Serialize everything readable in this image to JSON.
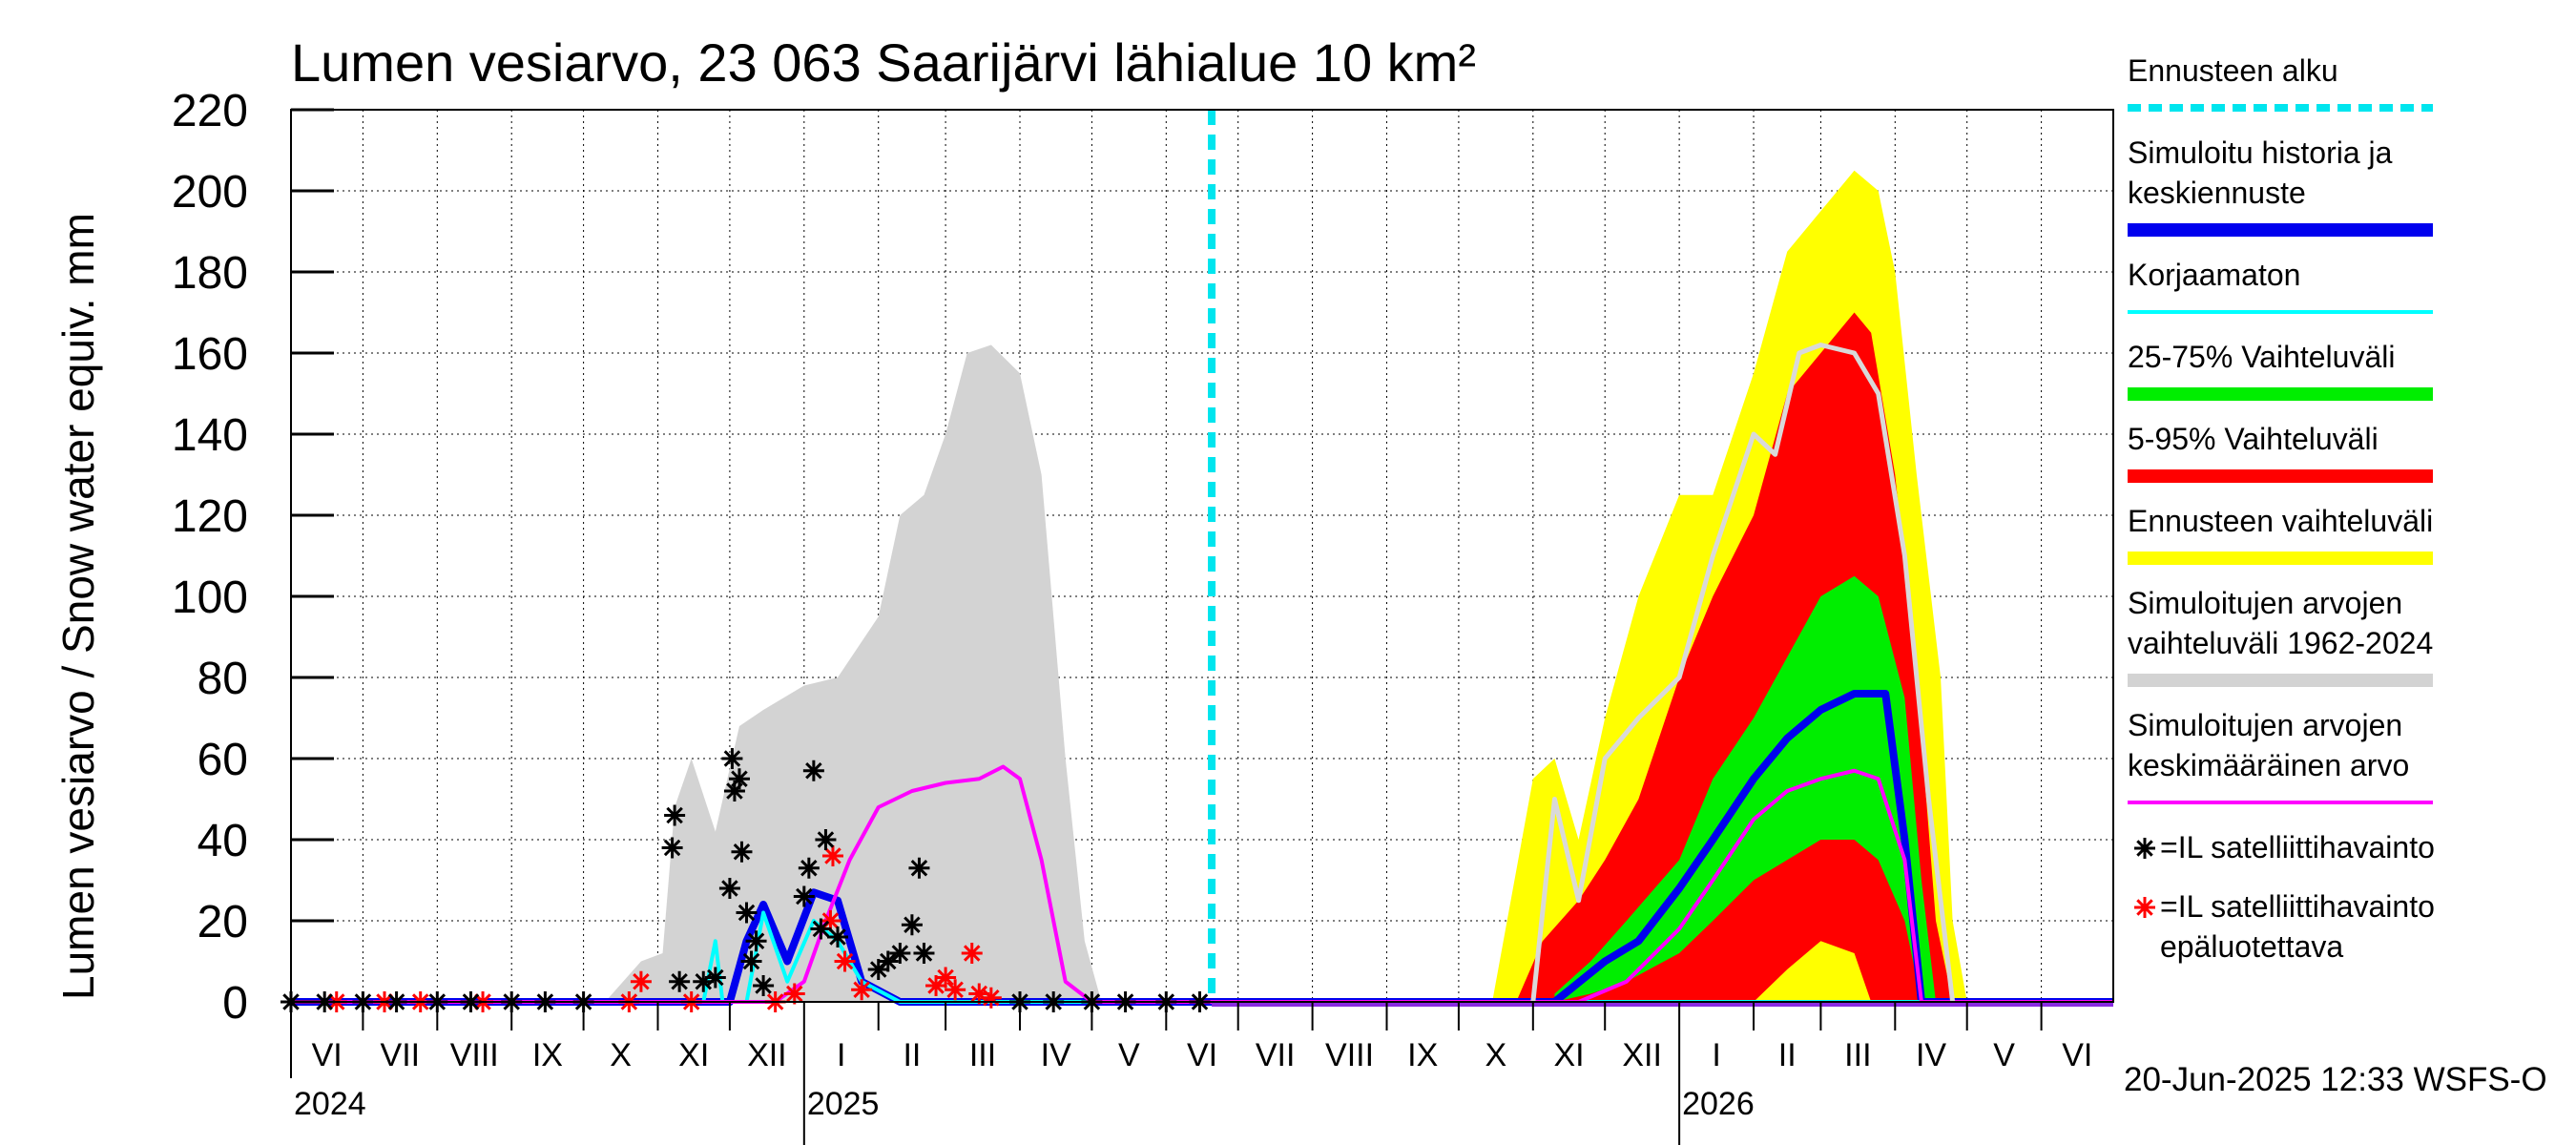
{
  "chart_data": {
    "type": "area",
    "title": "Lumen vesiarvo, 23 063 Saarijärvi lähialue 10 km²",
    "ylabel": "Lumen vesiarvo / Snow water equiv.    mm",
    "ylim": [
      0,
      220
    ],
    "yticks": [
      0,
      20,
      40,
      60,
      80,
      100,
      120,
      140,
      160,
      180,
      200,
      220
    ],
    "xlim": [
      "2024-06-01",
      "2026-07-01"
    ],
    "month_labels": [
      "VI",
      "VII",
      "VIII",
      "IX",
      "X",
      "XI",
      "XII",
      "I",
      "II",
      "III",
      "IV",
      "V",
      "VI",
      "VII",
      "VIII",
      "IX",
      "X",
      "XI",
      "XII",
      "I",
      "II",
      "III",
      "IV",
      "V",
      "VI"
    ],
    "year_labels": [
      {
        "label": "2024",
        "date": "2024-06-01"
      },
      {
        "label": "2025",
        "date": "2025-01-01"
      },
      {
        "label": "2026",
        "date": "2026-01-01"
      }
    ],
    "grid": true,
    "forecast_start": "2025-06-20",
    "footer": "20-Jun-2025 12:33 WSFS-O",
    "legend_position": "right",
    "legend": [
      {
        "label": "Ennusteen alku",
        "color": "#00e5ee",
        "style": "dashed"
      },
      {
        "label": "Simuloitu historia ja keskiennuste",
        "color": "#0000ee",
        "style": "thick"
      },
      {
        "label": "Korjaamaton",
        "color": "#00ffff",
        "style": "line"
      },
      {
        "label": "25-75% Vaihteluväli",
        "color": "#00ee00",
        "style": "thick"
      },
      {
        "label": "5-95% Vaihteluväli",
        "color": "#ff0000",
        "style": "thick"
      },
      {
        "label": "Ennusteen vaihteluväli",
        "color": "#ffff00",
        "style": "thick"
      },
      {
        "label": "Simuloitujen arvojen vaihteluväli 1962-2024",
        "color": "#d3d3d3",
        "style": "thick"
      },
      {
        "label": "Simuloitujen arvojen keskimääräinen arvo",
        "color": "#ff00ff",
        "style": "line"
      },
      {
        "label": "=IL satelliittihavainto",
        "color": "#000000",
        "style": "star"
      },
      {
        "label": "=IL satelliittihavainto epäluotettava",
        "color": "#ff0000",
        "style": "star"
      }
    ],
    "series": [
      {
        "name": "Simuloitujen arvojen vaihteluväli 1962-2024",
        "color": "#d3d3d3",
        "kind": "band",
        "x": [
          "2024-10-10",
          "2024-10-25",
          "2024-11-03",
          "2024-11-08",
          "2024-11-15",
          "2024-11-25",
          "2024-12-05",
          "2024-12-15",
          "2025-01-01",
          "2025-01-15",
          "2025-02-01",
          "2025-02-10",
          "2025-02-20",
          "2025-03-01",
          "2025-03-10",
          "2025-03-20",
          "2025-04-01",
          "2025-04-10",
          "2025-04-20",
          "2025-04-28",
          "2025-05-05"
        ],
        "low": [
          0,
          0,
          0,
          0,
          0,
          0,
          0,
          0,
          0,
          0,
          0,
          0,
          0,
          0,
          0,
          0,
          0,
          0,
          0,
          0,
          0
        ],
        "high": [
          0,
          10,
          12,
          48,
          60,
          42,
          68,
          72,
          78,
          80,
          95,
          120,
          125,
          140,
          160,
          162,
          155,
          130,
          60,
          15,
          0
        ]
      },
      {
        "name": "Ennusteen vaihteluväli",
        "color": "#ffff00",
        "kind": "band",
        "x": [
          "2025-10-15",
          "2025-11-01",
          "2025-11-10",
          "2025-11-20",
          "2025-12-01",
          "2025-12-15",
          "2026-01-01",
          "2026-01-15",
          "2026-02-01",
          "2026-02-15",
          "2026-03-01",
          "2026-03-15",
          "2026-03-25",
          "2026-04-01",
          "2026-04-10",
          "2026-04-20",
          "2026-04-25",
          "2026-05-01"
        ],
        "low": [
          0,
          0,
          0,
          0,
          0,
          0,
          0,
          0,
          0,
          0,
          0,
          0,
          0,
          0,
          0,
          0,
          0,
          0
        ],
        "high": [
          0,
          55,
          60,
          40,
          70,
          100,
          125,
          125,
          155,
          185,
          195,
          205,
          200,
          180,
          130,
          80,
          20,
          0
        ]
      },
      {
        "name": "5-95% Vaihteluväli",
        "color": "#ff0000",
        "kind": "band",
        "x": [
          "2025-10-25",
          "2025-11-05",
          "2025-11-20",
          "2025-12-01",
          "2025-12-15",
          "2026-01-01",
          "2026-01-15",
          "2026-02-01",
          "2026-02-15",
          "2026-03-01",
          "2026-03-15",
          "2026-03-22",
          "2026-04-01",
          "2026-04-10",
          "2026-04-18",
          "2026-04-25"
        ],
        "low": [
          0,
          0,
          0,
          0,
          0,
          0,
          0,
          0,
          8,
          15,
          12,
          0,
          0,
          0,
          0,
          0
        ],
        "high": [
          0,
          15,
          25,
          35,
          50,
          80,
          100,
          120,
          150,
          160,
          170,
          165,
          130,
          80,
          20,
          0
        ]
      },
      {
        "name": "25-75% Vaihteluväli",
        "color": "#00ee00",
        "kind": "band",
        "x": [
          "2025-11-10",
          "2025-11-25",
          "2025-12-10",
          "2026-01-01",
          "2026-01-15",
          "2026-02-01",
          "2026-02-15",
          "2026-03-01",
          "2026-03-15",
          "2026-03-25",
          "2026-04-05",
          "2026-04-12",
          "2026-04-18"
        ],
        "low": [
          0,
          2,
          5,
          12,
          20,
          30,
          35,
          40,
          40,
          35,
          20,
          0,
          0
        ],
        "high": [
          2,
          10,
          20,
          35,
          55,
          70,
          85,
          100,
          105,
          100,
          75,
          30,
          0
        ]
      },
      {
        "name": "Simuloitu historia ja keskiennuste",
        "color": "#0000ee",
        "kind": "line",
        "x": [
          "2024-06-01",
          "2024-12-01",
          "2024-12-08",
          "2024-12-15",
          "2024-12-25",
          "2025-01-05",
          "2025-01-15",
          "2025-01-25",
          "2025-02-10",
          "2025-06-20",
          "2025-11-10",
          "2025-12-01",
          "2025-12-15",
          "2026-01-01",
          "2026-01-15",
          "2026-02-01",
          "2026-02-15",
          "2026-03-01",
          "2026-03-15",
          "2026-03-28",
          "2026-04-05",
          "2026-04-12",
          "2026-07-01"
        ],
        "y": [
          0,
          0,
          15,
          24,
          10,
          27,
          25,
          5,
          0,
          0,
          0,
          10,
          15,
          28,
          40,
          55,
          65,
          72,
          76,
          76,
          40,
          0,
          0
        ]
      },
      {
        "name": "Korjaamaton",
        "color": "#00ffff",
        "kind": "line",
        "x": [
          "2024-06-01",
          "2024-11-20",
          "2024-11-25",
          "2024-11-28",
          "2024-12-08",
          "2024-12-15",
          "2024-12-25",
          "2025-01-05",
          "2025-01-15",
          "2025-01-25",
          "2025-02-10",
          "2025-06-20",
          "2026-07-01"
        ],
        "y": [
          0,
          0,
          15,
          0,
          0,
          22,
          5,
          20,
          15,
          5,
          0,
          0,
          0
        ]
      },
      {
        "name": "Simuloitujen arvojen keskimääräinen arvo",
        "color": "#ff00ff",
        "kind": "line",
        "x": [
          "2024-06-01",
          "2024-12-20",
          "2025-01-01",
          "2025-01-10",
          "2025-01-20",
          "2025-02-01",
          "2025-02-15",
          "2025-03-01",
          "2025-03-15",
          "2025-03-25",
          "2025-04-01",
          "2025-04-10",
          "2025-04-20",
          "2025-05-01",
          "2025-06-20",
          "2025-11-20",
          "2025-12-10",
          "2026-01-01",
          "2026-01-15",
          "2026-02-01",
          "2026-02-15",
          "2026-03-01",
          "2026-03-15",
          "2026-03-25",
          "2026-04-05",
          "2026-04-12",
          "2026-07-01"
        ],
        "y": [
          0,
          0,
          5,
          20,
          35,
          48,
          52,
          54,
          55,
          58,
          55,
          35,
          5,
          0,
          0,
          0,
          5,
          18,
          30,
          45,
          52,
          55,
          57,
          55,
          35,
          0,
          0
        ]
      },
      {
        "name": "Simuloitujen arvojen keskimääräinen arvo (ennuste)",
        "color": "#d9d9d9",
        "kind": "line",
        "x": [
          "2025-11-01",
          "2025-11-10",
          "2025-11-20",
          "2025-12-01",
          "2025-12-15",
          "2026-01-01",
          "2026-01-15",
          "2026-02-01",
          "2026-02-10",
          "2026-02-20",
          "2026-03-01",
          "2026-03-15",
          "2026-03-25",
          "2026-04-05",
          "2026-04-15",
          "2026-04-25"
        ],
        "y": [
          0,
          50,
          25,
          60,
          70,
          80,
          110,
          140,
          135,
          160,
          162,
          160,
          150,
          110,
          50,
          0
        ]
      }
    ],
    "observations": {
      "reliable": [
        [
          "2024-06-01",
          0
        ],
        [
          "2024-06-15",
          0
        ],
        [
          "2024-07-01",
          0
        ],
        [
          "2024-07-15",
          0
        ],
        [
          "2024-08-01",
          0
        ],
        [
          "2024-08-15",
          0
        ],
        [
          "2024-09-01",
          0
        ],
        [
          "2024-09-15",
          0
        ],
        [
          "2024-10-01",
          0
        ],
        [
          "2024-11-08",
          46
        ],
        [
          "2024-11-07",
          38
        ],
        [
          "2024-11-10",
          5
        ],
        [
          "2024-11-20",
          5
        ],
        [
          "2024-11-25",
          6
        ],
        [
          "2024-12-01",
          28
        ],
        [
          "2024-12-02",
          60
        ],
        [
          "2024-12-03",
          52
        ],
        [
          "2024-12-05",
          55
        ],
        [
          "2024-12-06",
          37
        ],
        [
          "2024-12-08",
          22
        ],
        [
          "2024-12-10",
          10
        ],
        [
          "2024-12-12",
          15
        ],
        [
          "2024-12-15",
          4
        ],
        [
          "2025-01-01",
          26
        ],
        [
          "2025-01-03",
          33
        ],
        [
          "2025-01-05",
          57
        ],
        [
          "2025-01-08",
          18
        ],
        [
          "2025-01-10",
          40
        ],
        [
          "2025-01-15",
          16
        ],
        [
          "2025-02-01",
          8
        ],
        [
          "2025-02-05",
          10
        ],
        [
          "2025-02-10",
          12
        ],
        [
          "2025-02-15",
          19
        ],
        [
          "2025-02-18",
          33
        ],
        [
          "2025-02-20",
          12
        ],
        [
          "2025-04-01",
          0
        ],
        [
          "2025-04-15",
          0
        ],
        [
          "2025-05-01",
          0
        ],
        [
          "2025-05-15",
          0
        ],
        [
          "2025-06-01",
          0
        ],
        [
          "2025-06-15",
          0
        ]
      ],
      "unreliable": [
        [
          "2024-06-20",
          0
        ],
        [
          "2024-07-10",
          0
        ],
        [
          "2024-07-25",
          0
        ],
        [
          "2024-08-20",
          0
        ],
        [
          "2024-10-20",
          0
        ],
        [
          "2024-10-25",
          5
        ],
        [
          "2024-11-15",
          0
        ],
        [
          "2024-12-20",
          0
        ],
        [
          "2024-12-28",
          2
        ],
        [
          "2025-01-12",
          20
        ],
        [
          "2025-01-13",
          36
        ],
        [
          "2025-01-18",
          10
        ],
        [
          "2025-01-25",
          3
        ],
        [
          "2025-02-25",
          4
        ],
        [
          "2025-03-01",
          6
        ],
        [
          "2025-03-05",
          3
        ],
        [
          "2025-03-12",
          12
        ],
        [
          "2025-03-15",
          2
        ],
        [
          "2025-03-20",
          1
        ]
      ]
    }
  }
}
